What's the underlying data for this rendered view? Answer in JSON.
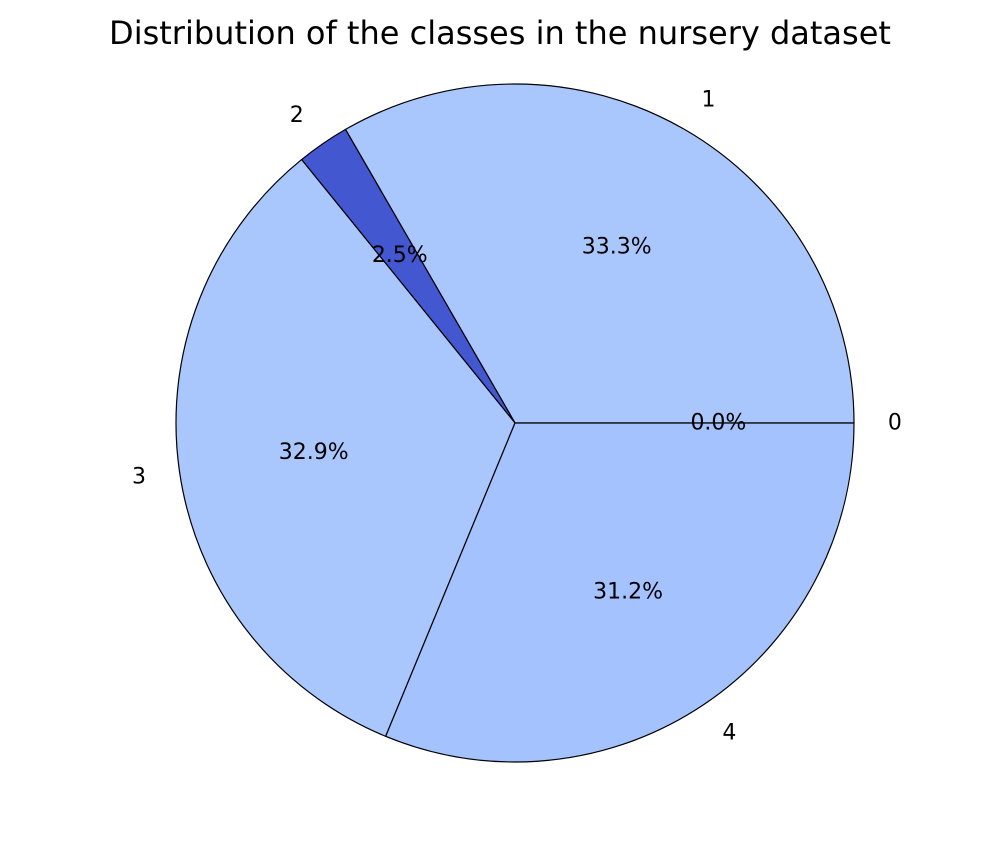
{
  "chart_data": {
    "type": "pie",
    "title": "Distribution of the classes in the nursery dataset",
    "categories": [
      "0",
      "1",
      "2",
      "3",
      "4"
    ],
    "values": [
      0.0,
      33.3,
      2.5,
      32.9,
      31.2
    ],
    "value_labels": [
      "0.0%",
      "33.3%",
      "2.5%",
      "32.9%",
      "31.2%"
    ],
    "colors": [
      "#7b9ff9",
      "#aac7fd",
      "#4257d0",
      "#aac7fd",
      "#a3c2fe"
    ],
    "start_angle_deg": 0,
    "direction": "counterclockwise",
    "legend": "none"
  }
}
